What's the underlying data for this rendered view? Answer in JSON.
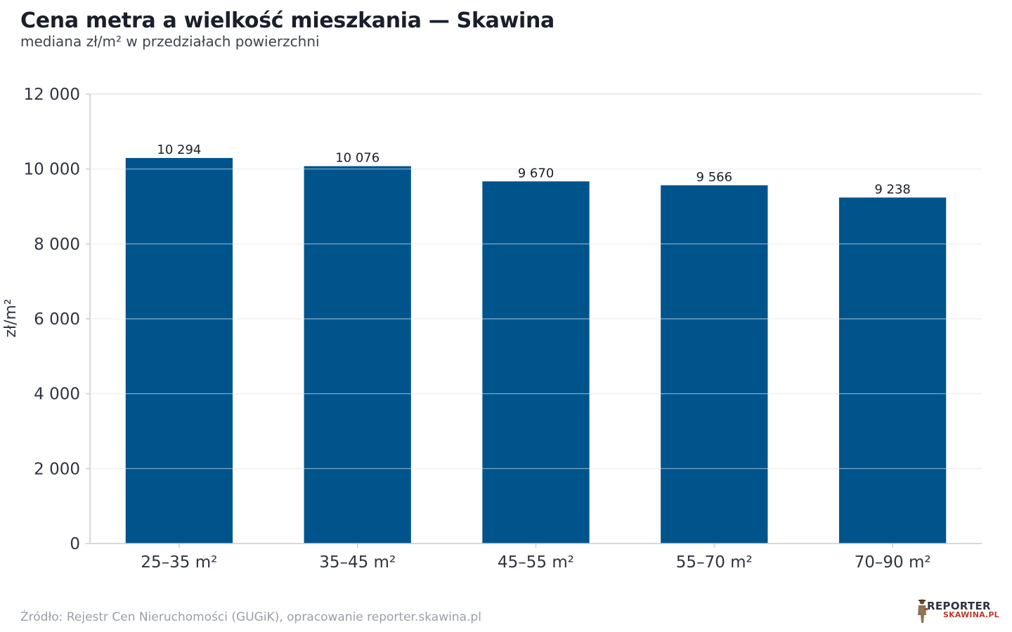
{
  "header": {
    "title": "Cena metra a wielkość mieszkania — Skawina",
    "subtitle": "mediana zł/m² w przedziałach powierzchni"
  },
  "footer": {
    "source": "Źródło: Rejestr Cen Nieruchomości (GUGiK), opracowanie reporter.skawina.pl"
  },
  "logo": {
    "line1": "REPORTER",
    "line2": "SKAWINA.PL"
  },
  "colors": {
    "bar": "#00548c",
    "grid": "#e4e6ea",
    "axis": "#c8ccd2",
    "logo_accent": "#c0392b"
  },
  "chart_data": {
    "type": "bar",
    "title": "Cena metra a wielkość mieszkania — Skawina",
    "subtitle": "mediana zł/m² w przedziałach powierzchni",
    "xlabel": "",
    "ylabel": "zł/m²",
    "categories": [
      "25–35 m²",
      "35–45 m²",
      "45–55 m²",
      "55–70 m²",
      "70–90 m²"
    ],
    "values": [
      10294,
      10076,
      9670,
      9566,
      9238
    ],
    "value_labels": [
      "10 294",
      "10 076",
      "9 670",
      "9 566",
      "9 238"
    ],
    "ylim": [
      0,
      12000
    ],
    "yticks": [
      0,
      2000,
      4000,
      6000,
      8000,
      10000,
      12000
    ],
    "ytick_labels": [
      "0",
      "2 000",
      "4 000",
      "6 000",
      "8 000",
      "10 000",
      "12 000"
    ],
    "grid": true,
    "legend": "none"
  }
}
